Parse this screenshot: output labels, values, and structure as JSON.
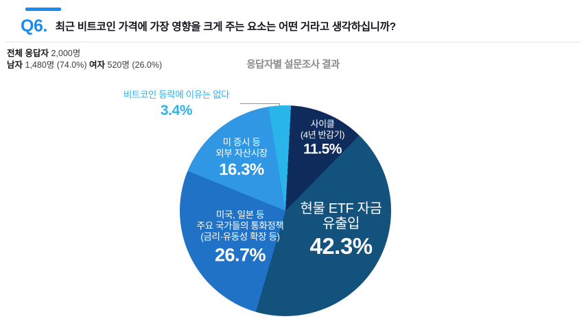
{
  "header": {
    "question_number": "Q6.",
    "question": "최근 비트코인 가격에 가장 영향을 크게 주는 요소는 어떤 거라고 생각하십니까?"
  },
  "respondents": {
    "total_label": "전체 응답자",
    "total_value": "2,000명",
    "male_label": "남자",
    "male_value": "1,480명 (74.0%)",
    "female_label": "여자",
    "female_value": "520명 (26.0%)"
  },
  "chart_title": "응답자별 설문조사 결과",
  "chart_data": {
    "type": "pie",
    "title": "응답자별 설문조사 결과",
    "start_angle_deg": 3,
    "clockwise_from_top": true,
    "slices": [
      {
        "label": "사이클 (4년 반감기)",
        "lines": [
          "사이클",
          "(4년 반감기)"
        ],
        "value": 11.5,
        "pct_label": "11.5%",
        "color": "#0E2B5C"
      },
      {
        "label": "현물 ETF 자금 유출입",
        "lines": [
          "현물 ETF 자금",
          "유출입"
        ],
        "value": 42.3,
        "pct_label": "42.3%",
        "color": "#14527E"
      },
      {
        "label": "미국, 일본 등 주요 국가들의 통화정책 (금리·유동성 확장 등)",
        "lines": [
          "미국, 일본 등",
          "주요 국가들의 통화정책",
          "(금리·유동성 확장 등)"
        ],
        "value": 26.7,
        "pct_label": "26.7%",
        "color": "#1F72C6"
      },
      {
        "label": "미 증시 등 외부 자산시장",
        "lines": [
          "미 증시 등",
          "외부 자산시장"
        ],
        "value": 16.3,
        "pct_label": "16.3%",
        "color": "#2F97E3"
      },
      {
        "label": "비트코인 등락에 이유는 없다",
        "lines": [
          "비트코인",
          "등락에 이유는 없다"
        ],
        "value": 3.4,
        "pct_label": "3.4%",
        "color": "#29B5EA"
      }
    ]
  },
  "colors": {
    "accent": "#1B8CEB",
    "title_gray": "#8A8A8A",
    "text_dark": "#15151F",
    "divider": "#E6E6E6",
    "label_white": "#FFFFFF"
  }
}
